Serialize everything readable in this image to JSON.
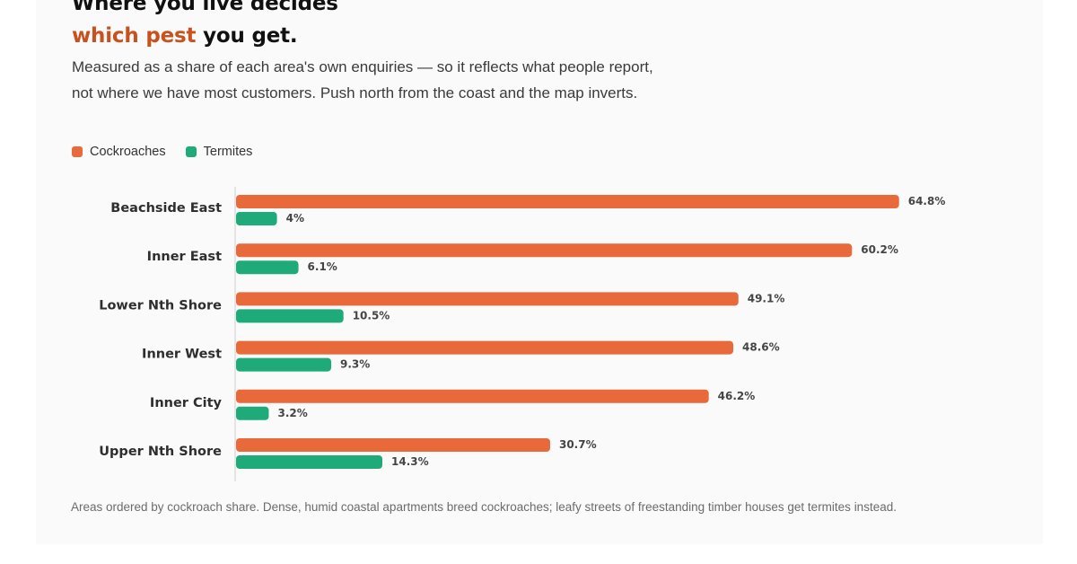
{
  "header": {
    "title_line1": "Where you live decides",
    "title_accent": "which pest",
    "title_rest": " you get.",
    "subtitle": "Measured as a share of each area's own enquiries — so it reflects what people report, not where we have most customers. Push north from the coast and the map inverts."
  },
  "legend": {
    "cockroaches": "Cockroaches",
    "termites": "Termites"
  },
  "colors": {
    "cockroaches": "#e8693a",
    "termites": "#1faa7a",
    "accent_text": "#c8521e"
  },
  "chart_data": {
    "type": "bar",
    "orientation": "horizontal",
    "categories": [
      "Beachside East",
      "Inner East",
      "Lower Nth Shore",
      "Inner West",
      "Inner City",
      "Upper Nth Shore"
    ],
    "series": [
      {
        "name": "Cockroaches",
        "values": [
          64.8,
          60.2,
          49.1,
          48.6,
          46.2,
          30.7
        ],
        "labels": [
          "64.8%",
          "60.2%",
          "49.1%",
          "48.6%",
          "46.2%",
          "30.7%"
        ]
      },
      {
        "name": "Termites",
        "values": [
          4,
          6.1,
          10.5,
          9.3,
          3.2,
          14.3
        ],
        "labels": [
          "4%",
          "6.1%",
          "10.5%",
          "9.3%",
          "3.2%",
          "14.3%"
        ]
      }
    ],
    "xlim": [
      0,
      100
    ],
    "legend_position": "top-left",
    "grid": false
  },
  "footnote": "Areas ordered by cockroach share. Dense, humid coastal apartments breed cockroaches; leafy streets of freestanding timber houses get termites instead."
}
